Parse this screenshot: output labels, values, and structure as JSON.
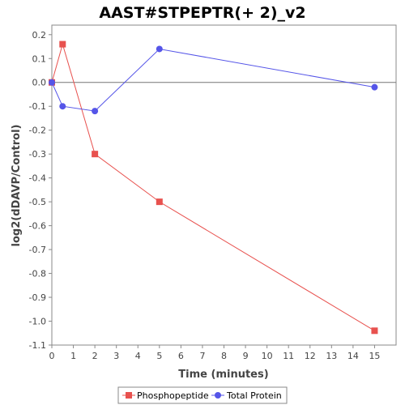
{
  "chart_data": {
    "type": "line",
    "title": "AAST#STPEPTR(+ 2)_v2",
    "xlabel": "Time (minutes)",
    "ylabel": "log2(dDAVP/Control)",
    "xlim": [
      0,
      16
    ],
    "ylim": [
      -1.1,
      0.24
    ],
    "xticks": [
      0,
      1,
      2,
      3,
      4,
      5,
      6,
      7,
      8,
      9,
      10,
      11,
      12,
      13,
      14,
      15
    ],
    "yticks": [
      0.2,
      0.1,
      0.0,
      -0.1,
      -0.2,
      -0.3,
      -0.4,
      -0.5,
      -0.6,
      -0.7,
      -0.8,
      -0.9,
      -1.0,
      -1.1
    ],
    "ytick_labels": [
      "0.2",
      "0.1",
      "0.0",
      "-0.1",
      "-0.2",
      "-0.3",
      "-0.4",
      "-0.5",
      "-0.6",
      "-0.7",
      "-0.8",
      "-0.9",
      "-1.0",
      "-1.1"
    ],
    "zero_line": true,
    "grid": false,
    "legend_position": "bottom",
    "series": [
      {
        "name": "Phosphopeptide",
        "color": "#e8514e",
        "marker": "square",
        "x": [
          0,
          0.5,
          2,
          5,
          15
        ],
        "y": [
          0.0,
          0.16,
          -0.3,
          -0.5,
          -1.04
        ]
      },
      {
        "name": "Total Protein",
        "color": "#5555e8",
        "marker": "circle",
        "x": [
          0,
          0.5,
          2,
          5,
          15
        ],
        "y": [
          0.0,
          -0.1,
          -0.12,
          0.14,
          -0.02
        ]
      }
    ]
  }
}
